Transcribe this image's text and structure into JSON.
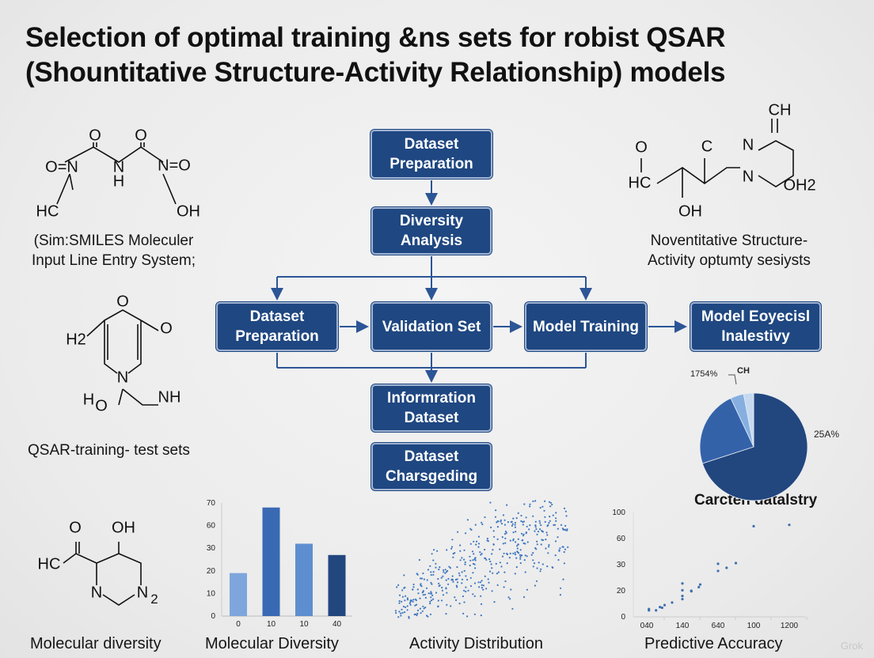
{
  "title": {
    "line1": "Selection of optimal training &ns sets for robist QSAR",
    "line2": "(Shountitative Structure-Activity Relationship) models"
  },
  "flow": {
    "top": "Dataset Preparation",
    "diversity": "Diversity Analysis",
    "row": [
      "Dataset Preparation",
      "Validation Set",
      "Model Training",
      "Model Eoyecisl Inalestivy"
    ],
    "info": "Informration Dataset",
    "charge": "Dataset Charsgeding"
  },
  "colors": {
    "box": "#1f4781",
    "box_border": "#9fb3d2",
    "arrow": "#2c5596",
    "bar_light": "#7ea6dc",
    "bar_mid": "#3a69b4",
    "bar_dark": "#22467e"
  },
  "texts": {
    "smiles": "(Sim:SMILES Moleculer\nInput Line Entry System;",
    "noventitative": "Noventitative Structure-\nActivity optumty sesiysts",
    "qsar_sets": "QSAR-training- test sets",
    "mol_div_left": "Molecular diversity",
    "watermark": "Grok"
  },
  "molecules": {
    "m1": [
      "O",
      "O",
      "O=N",
      "N",
      "H",
      "N=O",
      "HC",
      "OH"
    ],
    "m2": [
      "CH",
      "O",
      "C",
      "N",
      "HC",
      "N",
      "OH2",
      "OH"
    ],
    "m3": [
      "O",
      "H2",
      "O",
      "N",
      "H",
      "O",
      "NH"
    ],
    "m4": [
      "O",
      "OH",
      "HC",
      "N",
      "N",
      "2"
    ]
  },
  "chart_data": [
    {
      "type": "bar",
      "title": "Molecular Diversity",
      "categories": [
        "0",
        "10",
        "10",
        "40"
      ],
      "values": [
        19,
        68,
        36,
        27
      ],
      "y_ticks": [
        0,
        10,
        20,
        30,
        60,
        70
      ],
      "colors": [
        "#7ea6dc",
        "#3a69b4",
        "#5d8fd0",
        "#22467e"
      ]
    },
    {
      "type": "scatter",
      "title": "Activity Distribution",
      "color": "#3f77c0"
    },
    {
      "type": "pie",
      "title": "Carcten datalstry",
      "values": [
        70,
        23,
        4,
        3
      ],
      "colors": [
        "#22467e",
        "#3462a9",
        "#86afe0",
        "#c6d9f0"
      ],
      "labels": [
        "25A%",
        "",
        "1754%",
        "CH"
      ]
    },
    {
      "type": "scatter",
      "title": "Predictive Accuracy",
      "x_ticks": [
        "040",
        "140",
        "640",
        "100",
        "1200"
      ],
      "y_ticks": [
        0,
        20,
        30,
        60,
        100
      ],
      "x_is_tick_index": true,
      "points": [
        [
          0.06,
          6
        ],
        [
          0.06,
          5
        ],
        [
          0.26,
          5
        ],
        [
          0.37,
          7.5
        ],
        [
          0.43,
          7
        ],
        [
          0.5,
          9
        ],
        [
          0.71,
          11
        ],
        [
          1.0,
          22.8
        ],
        [
          1.0,
          20.2
        ],
        [
          1.0,
          16
        ],
        [
          1.0,
          13.6
        ],
        [
          1.25,
          20
        ],
        [
          1.25,
          19.6
        ],
        [
          1.46,
          21.4
        ],
        [
          1.5,
          22.4
        ],
        [
          2.0,
          31
        ],
        [
          2.0,
          27.6
        ],
        [
          2.24,
          28.8
        ],
        [
          2.5,
          31.8
        ],
        [
          3.0,
          79
        ],
        [
          4.0,
          81
        ]
      ]
    }
  ]
}
